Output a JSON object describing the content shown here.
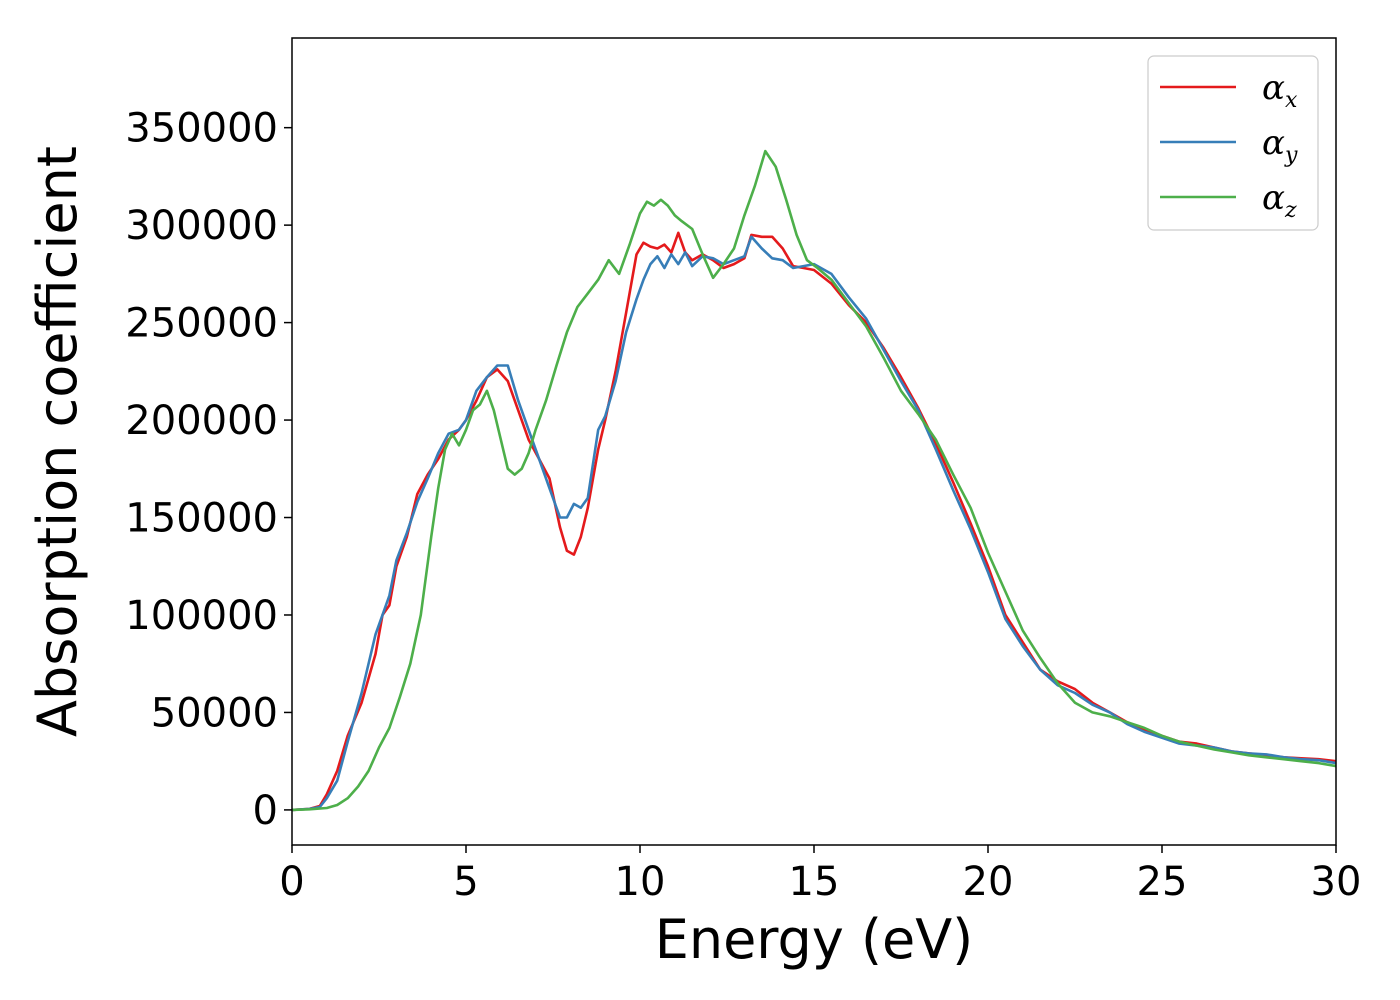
{
  "chart_data": {
    "type": "line",
    "title": "",
    "xlabel": "Energy (eV)",
    "ylabel": "Absorption coefficient",
    "xlim": [
      0,
      30
    ],
    "ylim": [
      -18000,
      396000
    ],
    "xticks": [
      0,
      5,
      10,
      15,
      20,
      25,
      30
    ],
    "xtick_labels": [
      "0",
      "5",
      "10",
      "15",
      "20",
      "25",
      "30"
    ],
    "yticks": [
      0,
      50000,
      100000,
      150000,
      200000,
      250000,
      300000,
      350000
    ],
    "ytick_labels": [
      "0",
      "50000",
      "100000",
      "150000",
      "200000",
      "250000",
      "300000",
      "350000"
    ],
    "grid": false,
    "legend_position": "top-right",
    "series": [
      {
        "name": "α",
        "subscript": "x",
        "color": "#e41a1c",
        "x": [
          0,
          0.5,
          0.8,
          1.0,
          1.3,
          1.6,
          2.0,
          2.4,
          2.6,
          2.8,
          3.0,
          3.3,
          3.6,
          3.9,
          4.2,
          4.5,
          4.8,
          5.0,
          5.3,
          5.6,
          5.9,
          6.2,
          6.5,
          6.8,
          7.1,
          7.4,
          7.7,
          7.9,
          8.1,
          8.3,
          8.5,
          8.8,
          9.0,
          9.3,
          9.6,
          9.9,
          10.1,
          10.3,
          10.5,
          10.7,
          10.9,
          11.1,
          11.3,
          11.5,
          11.8,
          12.1,
          12.4,
          12.7,
          13.0,
          13.2,
          13.5,
          13.8,
          14.1,
          14.4,
          14.7,
          15.0,
          15.5,
          16.0,
          16.5,
          17.0,
          17.5,
          18.0,
          18.5,
          19.0,
          19.5,
          20.0,
          20.5,
          21.0,
          21.5,
          22.0,
          22.5,
          23.0,
          23.5,
          24.0,
          24.5,
          25.0,
          25.5,
          26.0,
          26.5,
          27.0,
          27.5,
          28.0,
          28.5,
          29.0,
          29.5,
          30.0
        ],
        "values": [
          0,
          500,
          2000,
          8000,
          20000,
          38000,
          55000,
          80000,
          100000,
          105000,
          125000,
          140000,
          162000,
          172000,
          180000,
          190000,
          195000,
          200000,
          210000,
          222000,
          226000,
          220000,
          205000,
          190000,
          180000,
          170000,
          145000,
          133000,
          131000,
          140000,
          155000,
          185000,
          200000,
          225000,
          255000,
          285000,
          291000,
          289000,
          288000,
          290000,
          286000,
          296000,
          286000,
          282000,
          285000,
          282000,
          278000,
          280000,
          283000,
          295000,
          294000,
          294000,
          288000,
          279000,
          278000,
          277000,
          270000,
          259000,
          250000,
          237000,
          222000,
          206000,
          188000,
          168000,
          147000,
          125000,
          100000,
          86000,
          72000,
          66000,
          62000,
          55000,
          50000,
          45000,
          41000,
          38000,
          35000,
          34000,
          32000,
          30000,
          29000,
          28000,
          27000,
          26500,
          26000,
          25000
        ]
      },
      {
        "name": "α",
        "subscript": "y",
        "color": "#377eb8",
        "x": [
          0,
          0.5,
          0.8,
          1.0,
          1.3,
          1.6,
          2.0,
          2.4,
          2.6,
          2.8,
          3.0,
          3.3,
          3.6,
          3.9,
          4.2,
          4.5,
          4.8,
          5.0,
          5.3,
          5.6,
          5.9,
          6.2,
          6.5,
          6.8,
          7.1,
          7.4,
          7.7,
          7.9,
          8.1,
          8.3,
          8.5,
          8.8,
          9.0,
          9.3,
          9.6,
          9.9,
          10.1,
          10.3,
          10.5,
          10.7,
          10.9,
          11.1,
          11.3,
          11.5,
          11.8,
          12.1,
          12.4,
          12.7,
          13.0,
          13.2,
          13.5,
          13.8,
          14.1,
          14.4,
          14.7,
          15.0,
          15.5,
          16.0,
          16.5,
          17.0,
          17.5,
          18.0,
          18.5,
          19.0,
          19.5,
          20.0,
          20.5,
          21.0,
          21.5,
          22.0,
          22.5,
          23.0,
          23.5,
          24.0,
          24.5,
          25.0,
          25.5,
          26.0,
          26.5,
          27.0,
          27.5,
          28.0,
          28.5,
          29.0,
          29.5,
          30.0
        ],
        "values": [
          0,
          500,
          1500,
          6000,
          15000,
          35000,
          60000,
          90000,
          100000,
          110000,
          128000,
          142000,
          158000,
          170000,
          183000,
          193000,
          195000,
          200000,
          215000,
          222000,
          228000,
          228000,
          210000,
          195000,
          180000,
          165000,
          150000,
          150000,
          157000,
          155000,
          160000,
          195000,
          202000,
          220000,
          245000,
          262000,
          272000,
          280000,
          284000,
          278000,
          285000,
          280000,
          286000,
          279000,
          284000,
          283000,
          280000,
          282000,
          284000,
          294000,
          288000,
          283000,
          282000,
          278000,
          279000,
          280000,
          275000,
          263000,
          252000,
          236000,
          220000,
          205000,
          185000,
          164000,
          144000,
          122000,
          98000,
          84000,
          72000,
          64000,
          60000,
          54000,
          50000,
          44000,
          40000,
          37000,
          34000,
          33000,
          32000,
          30000,
          29000,
          28500,
          27000,
          26000,
          25500,
          24000
        ]
      },
      {
        "name": "α",
        "subscript": "z",
        "color": "#4daf4a",
        "x": [
          0,
          0.5,
          1.0,
          1.3,
          1.6,
          1.9,
          2.2,
          2.5,
          2.8,
          3.1,
          3.4,
          3.7,
          4.0,
          4.2,
          4.4,
          4.6,
          4.8,
          5.0,
          5.2,
          5.4,
          5.6,
          5.8,
          6.0,
          6.2,
          6.4,
          6.6,
          6.8,
          7.0,
          7.3,
          7.6,
          7.9,
          8.2,
          8.5,
          8.8,
          9.1,
          9.4,
          9.7,
          10.0,
          10.2,
          10.4,
          10.6,
          10.8,
          11.0,
          11.2,
          11.5,
          11.8,
          12.1,
          12.4,
          12.7,
          13.0,
          13.3,
          13.6,
          13.9,
          14.2,
          14.5,
          14.8,
          15.1,
          15.5,
          16.0,
          16.5,
          17.0,
          17.5,
          18.0,
          18.5,
          19.0,
          19.5,
          20.0,
          20.5,
          21.0,
          21.5,
          22.0,
          22.5,
          23.0,
          23.5,
          24.0,
          24.5,
          25.0,
          25.5,
          26.0,
          26.5,
          27.0,
          27.5,
          28.0,
          28.5,
          29.0,
          29.5,
          30.0
        ],
        "values": [
          0,
          300,
          1000,
          2500,
          6000,
          12000,
          20000,
          32000,
          42000,
          58000,
          75000,
          100000,
          140000,
          165000,
          185000,
          193000,
          187000,
          195000,
          205000,
          208000,
          215000,
          205000,
          190000,
          175000,
          172000,
          175000,
          183000,
          195000,
          210000,
          228000,
          245000,
          258000,
          265000,
          272000,
          282000,
          275000,
          290000,
          306000,
          312000,
          310000,
          313000,
          310000,
          305000,
          302000,
          298000,
          285000,
          273000,
          280000,
          288000,
          305000,
          320000,
          338000,
          330000,
          313000,
          295000,
          282000,
          278000,
          272000,
          260000,
          248000,
          232000,
          215000,
          203000,
          190000,
          172000,
          155000,
          132000,
          112000,
          92000,
          78000,
          65000,
          55000,
          50000,
          48000,
          45000,
          42000,
          38000,
          35000,
          33000,
          31000,
          29500,
          28000,
          27000,
          26000,
          25000,
          24000,
          22500
        ]
      }
    ]
  }
}
